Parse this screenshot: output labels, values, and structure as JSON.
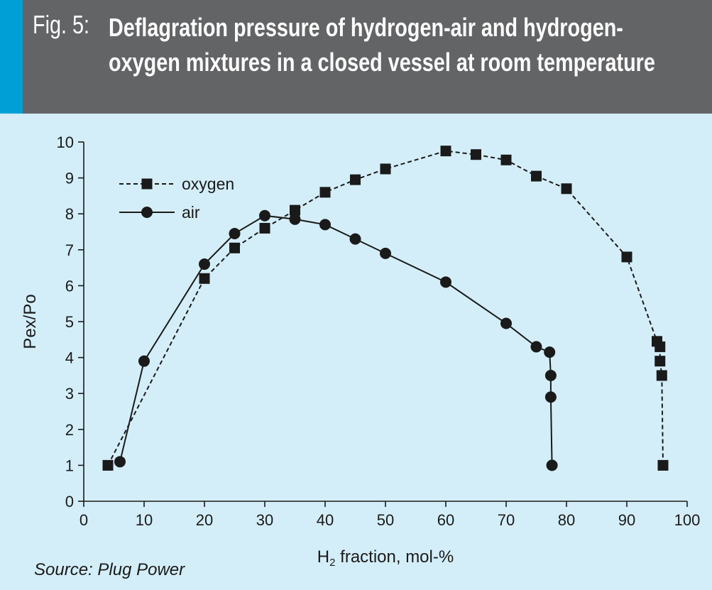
{
  "header": {
    "fig_label": "Fig. 5:",
    "title": "Deflagration pressure of hydrogen-air and hydrogen-oxygen mixtures in a closed vessel at room temperature",
    "background_color": "#636466",
    "accent_color": "#00a0d6"
  },
  "source": "Source: Plug Power",
  "chart_data": {
    "type": "line",
    "xlabel_main": "H",
    "xlabel_sub": "2",
    "xlabel_rest": " fraction, mol-%",
    "ylabel": "Pex/Po",
    "xlim": [
      0,
      100
    ],
    "ylim": [
      0,
      10
    ],
    "x_ticks": [
      0,
      10,
      20,
      30,
      40,
      50,
      60,
      70,
      80,
      90,
      100
    ],
    "y_ticks": [
      0,
      1,
      2,
      3,
      4,
      5,
      6,
      7,
      8,
      9,
      10
    ],
    "grid": false,
    "legend_position": "top-left",
    "background_color": "#d4eef9",
    "series": [
      {
        "name": "oxygen",
        "marker": "square",
        "line_style": "dashed",
        "x": [
          4,
          20,
          25,
          30,
          35,
          40,
          45,
          50,
          60,
          65,
          70,
          75,
          80,
          90,
          95,
          95.5,
          95.5,
          95.8,
          96
        ],
        "y": [
          1.0,
          6.2,
          7.05,
          7.6,
          8.1,
          8.6,
          8.95,
          9.25,
          9.75,
          9.65,
          9.5,
          9.05,
          8.7,
          6.8,
          4.45,
          4.3,
          3.9,
          3.5,
          1.0
        ]
      },
      {
        "name": "air",
        "marker": "circle",
        "line_style": "solid",
        "x": [
          6,
          10,
          20,
          25,
          30,
          35,
          40,
          45,
          50,
          60,
          70,
          75,
          77.2,
          77.4,
          77.4,
          77.6
        ],
        "y": [
          1.1,
          3.9,
          6.6,
          7.45,
          7.95,
          7.85,
          7.7,
          7.3,
          6.9,
          6.1,
          4.95,
          4.3,
          4.15,
          3.5,
          2.9,
          1.0
        ]
      }
    ]
  }
}
